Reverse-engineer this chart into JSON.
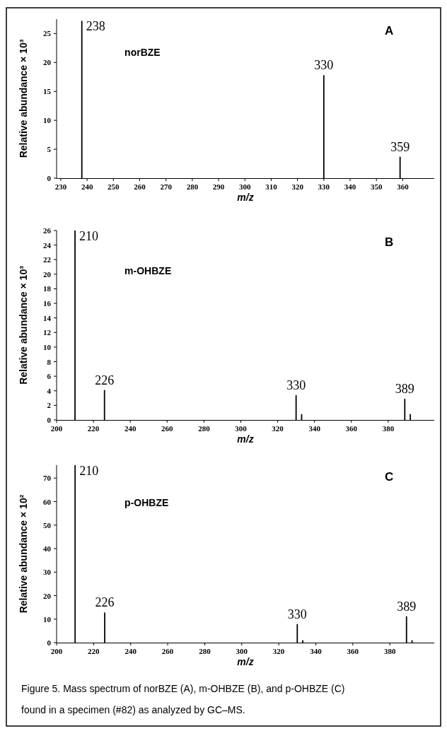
{
  "chart_data": [
    {
      "type": "bar",
      "ylabel": "Relative abundance × 10³",
      "xlabel": "m/z",
      "x": [
        238,
        330,
        359
      ],
      "values": [
        27.2,
        17.8,
        3.7
      ],
      "color": "#000000",
      "xlim": [
        228.4,
        372
      ],
      "xticks": [
        230,
        240,
        250,
        260,
        270,
        280,
        290,
        300,
        310,
        320,
        330,
        340,
        350,
        360
      ],
      "ylim": [
        0,
        27.5
      ],
      "yticks": [
        0,
        5,
        10,
        15,
        20,
        25
      ],
      "annotations": [
        "A",
        "norBZE",
        {
          "text": "238",
          "x": 238,
          "y": 27.2
        },
        {
          "text": "330",
          "x": 330,
          "y": 17.8
        },
        {
          "text": "359",
          "x": 359,
          "y": 3.7
        }
      ]
    },
    {
      "type": "bar",
      "ylabel": "Relative abundance × 10³",
      "xlabel": "m/z",
      "x": [
        210,
        226,
        330,
        333,
        389,
        392
      ],
      "values": [
        26,
        4.1,
        3.4,
        0.8,
        2.9,
        0.8
      ],
      "color": "#000000",
      "xlim": [
        200,
        405
      ],
      "xticks": [
        200,
        220,
        240,
        260,
        280,
        300,
        320,
        340,
        360,
        380
      ],
      "ylim": [
        0,
        26
      ],
      "yticks": [
        0,
        2,
        4,
        6,
        8,
        10,
        12,
        14,
        16,
        18,
        20,
        22,
        24,
        26
      ],
      "annotations": [
        "B",
        "m-OHBZE",
        {
          "text": "210",
          "x": 210,
          "y": 26
        },
        {
          "text": "226",
          "x": 226,
          "y": 4.1
        },
        {
          "text": "330",
          "x": 330,
          "y": 3.4
        },
        {
          "text": "389",
          "x": 389,
          "y": 2.9
        }
      ]
    },
    {
      "type": "bar",
      "ylabel": "Relative abundance × 10²",
      "xlabel": "m/z",
      "x": [
        210,
        226,
        330,
        333,
        389,
        392
      ],
      "values": [
        75.5,
        12.8,
        7.9,
        1,
        11.2,
        1
      ],
      "color": "#000000",
      "xlim": [
        200,
        404
      ],
      "xticks": [
        200,
        220,
        240,
        260,
        280,
        300,
        320,
        340,
        360,
        380
      ],
      "ylim": [
        0,
        75.5
      ],
      "yticks": [
        0,
        10,
        20,
        30,
        40,
        50,
        60,
        70
      ],
      "annotations": [
        "C",
        "p-OHBZE",
        {
          "text": "210",
          "x": 210,
          "y": 75.5
        },
        {
          "text": "226",
          "x": 226,
          "y": 12.8
        },
        {
          "text": "330",
          "x": 330,
          "y": 7.9
        },
        {
          "text": "389",
          "x": 389,
          "y": 11.2
        },
        "Figure 5. Mass spectrum of norBZE (A), m-OHBZE (B), and p-OHBZE (C) found in a specimen (#82) as analyzed by GC–MS."
      ]
    }
  ]
}
